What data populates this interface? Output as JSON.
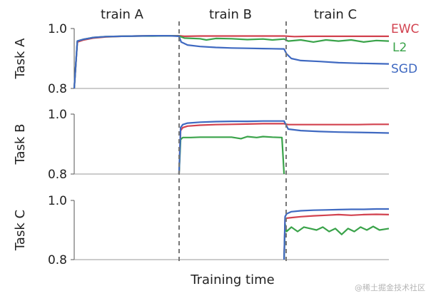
{
  "chart_data": {
    "type": "line",
    "xlabel": "Training time",
    "phases": [
      "train A",
      "train B",
      "train C"
    ],
    "legend": {
      "placement": "right",
      "entries": [
        {
          "name": "EWC",
          "color": "#d2424f"
        },
        {
          "name": "L2",
          "color": "#3aa34a"
        },
        {
          "name": "SGD",
          "color": "#3f69c1"
        }
      ]
    },
    "grid": false,
    "ylim": [
      0.8,
      1.0
    ],
    "yticks": [
      "1.0",
      "0.8"
    ],
    "panels": [
      {
        "name": "Task A",
        "ylabel": "Task A",
        "series": [
          {
            "name": "EWC",
            "color": "#d2424f",
            "x": [
              0.0,
              0.01,
              0.03,
              0.06,
              0.1,
              0.15,
              0.2,
              0.25,
              0.3,
              0.333,
              0.35,
              0.4,
              0.45,
              0.5,
              0.55,
              0.6,
              0.667,
              0.7,
              0.75,
              0.8,
              0.85,
              0.9,
              0.95,
              1.0
            ],
            "y": [
              0.8,
              0.955,
              0.962,
              0.968,
              0.972,
              0.974,
              0.975,
              0.976,
              0.976,
              0.976,
              0.974,
              0.975,
              0.975,
              0.975,
              0.975,
              0.975,
              0.975,
              0.973,
              0.974,
              0.974,
              0.974,
              0.974,
              0.974,
              0.974
            ]
          },
          {
            "name": "L2",
            "color": "#3aa34a",
            "x": [
              0.0,
              0.01,
              0.03,
              0.06,
              0.1,
              0.15,
              0.2,
              0.25,
              0.3,
              0.333,
              0.35,
              0.4,
              0.42,
              0.45,
              0.5,
              0.55,
              0.6,
              0.63,
              0.667,
              0.68,
              0.72,
              0.76,
              0.8,
              0.84,
              0.88,
              0.92,
              0.96,
              1.0
            ],
            "y": [
              0.8,
              0.958,
              0.964,
              0.97,
              0.973,
              0.974,
              0.975,
              0.975,
              0.976,
              0.975,
              0.968,
              0.966,
              0.962,
              0.967,
              0.966,
              0.963,
              0.965,
              0.962,
              0.965,
              0.958,
              0.962,
              0.955,
              0.962,
              0.958,
              0.962,
              0.955,
              0.96,
              0.958
            ]
          },
          {
            "name": "SGD",
            "color": "#3f69c1",
            "x": [
              0.0,
              0.01,
              0.03,
              0.06,
              0.1,
              0.15,
              0.2,
              0.25,
              0.3,
              0.333,
              0.34,
              0.36,
              0.4,
              0.45,
              0.5,
              0.55,
              0.6,
              0.667,
              0.675,
              0.69,
              0.72,
              0.78,
              0.84,
              0.9,
              0.95,
              1.0
            ],
            "y": [
              0.8,
              0.958,
              0.964,
              0.97,
              0.973,
              0.974,
              0.975,
              0.976,
              0.976,
              0.974,
              0.955,
              0.945,
              0.94,
              0.937,
              0.935,
              0.934,
              0.933,
              0.932,
              0.915,
              0.9,
              0.893,
              0.89,
              0.886,
              0.884,
              0.883,
              0.882
            ]
          }
        ]
      },
      {
        "name": "Task B",
        "ylabel": "Task B",
        "series": [
          {
            "name": "EWC",
            "color": "#d2424f",
            "x": [
              0.333,
              0.338,
              0.345,
              0.36,
              0.4,
              0.45,
              0.5,
              0.55,
              0.6,
              0.667,
              0.68,
              0.72,
              0.78,
              0.84,
              0.9,
              0.95,
              1.0
            ],
            "y": [
              0.8,
              0.945,
              0.955,
              0.96,
              0.963,
              0.965,
              0.966,
              0.967,
              0.968,
              0.968,
              0.965,
              0.965,
              0.965,
              0.965,
              0.965,
              0.966,
              0.966
            ]
          },
          {
            "name": "L2",
            "color": "#3aa34a",
            "x": [
              0.333,
              0.338,
              0.345,
              0.37,
              0.4,
              0.45,
              0.5,
              0.53,
              0.55,
              0.58,
              0.6,
              0.63,
              0.66,
              0.667
            ],
            "y": [
              0.8,
              0.915,
              0.922,
              0.922,
              0.923,
              0.923,
              0.923,
              0.918,
              0.925,
              0.922,
              0.925,
              0.923,
              0.922,
              0.8
            ]
          },
          {
            "name": "SGD",
            "color": "#3f69c1",
            "x": [
              0.333,
              0.338,
              0.345,
              0.36,
              0.4,
              0.45,
              0.5,
              0.55,
              0.6,
              0.667,
              0.68,
              0.72,
              0.78,
              0.84,
              0.9,
              0.95,
              1.0
            ],
            "y": [
              0.8,
              0.955,
              0.965,
              0.97,
              0.973,
              0.975,
              0.976,
              0.976,
              0.977,
              0.977,
              0.95,
              0.945,
              0.942,
              0.94,
              0.939,
              0.938,
              0.937
            ]
          }
        ]
      },
      {
        "name": "Task C",
        "ylabel": "Task C",
        "series": [
          {
            "name": "EWC",
            "color": "#d2424f",
            "x": [
              0.667,
              0.67,
              0.675,
              0.69,
              0.72,
              0.76,
              0.8,
              0.84,
              0.88,
              0.92,
              0.96,
              1.0
            ],
            "y": [
              0.8,
              0.935,
              0.94,
              0.942,
              0.945,
              0.948,
              0.95,
              0.952,
              0.95,
              0.952,
              0.953,
              0.952
            ]
          },
          {
            "name": "L2",
            "color": "#3aa34a",
            "x": [
              0.667,
              0.67,
              0.675,
              0.69,
              0.71,
              0.73,
              0.75,
              0.77,
              0.79,
              0.81,
              0.83,
              0.85,
              0.87,
              0.89,
              0.91,
              0.93,
              0.95,
              0.97,
              1.0
            ],
            "y": [
              0.8,
              0.92,
              0.895,
              0.91,
              0.895,
              0.91,
              0.905,
              0.9,
              0.91,
              0.895,
              0.905,
              0.885,
              0.905,
              0.895,
              0.91,
              0.9,
              0.912,
              0.9,
              0.905
            ]
          },
          {
            "name": "SGD",
            "color": "#3f69c1",
            "x": [
              0.667,
              0.67,
              0.675,
              0.69,
              0.72,
              0.76,
              0.8,
              0.84,
              0.88,
              0.92,
              0.96,
              1.0
            ],
            "y": [
              0.8,
              0.945,
              0.955,
              0.962,
              0.965,
              0.967,
              0.968,
              0.969,
              0.97,
              0.97,
              0.971,
              0.971
            ]
          }
        ]
      }
    ]
  },
  "watermark": "@稀土掘金技术社区"
}
